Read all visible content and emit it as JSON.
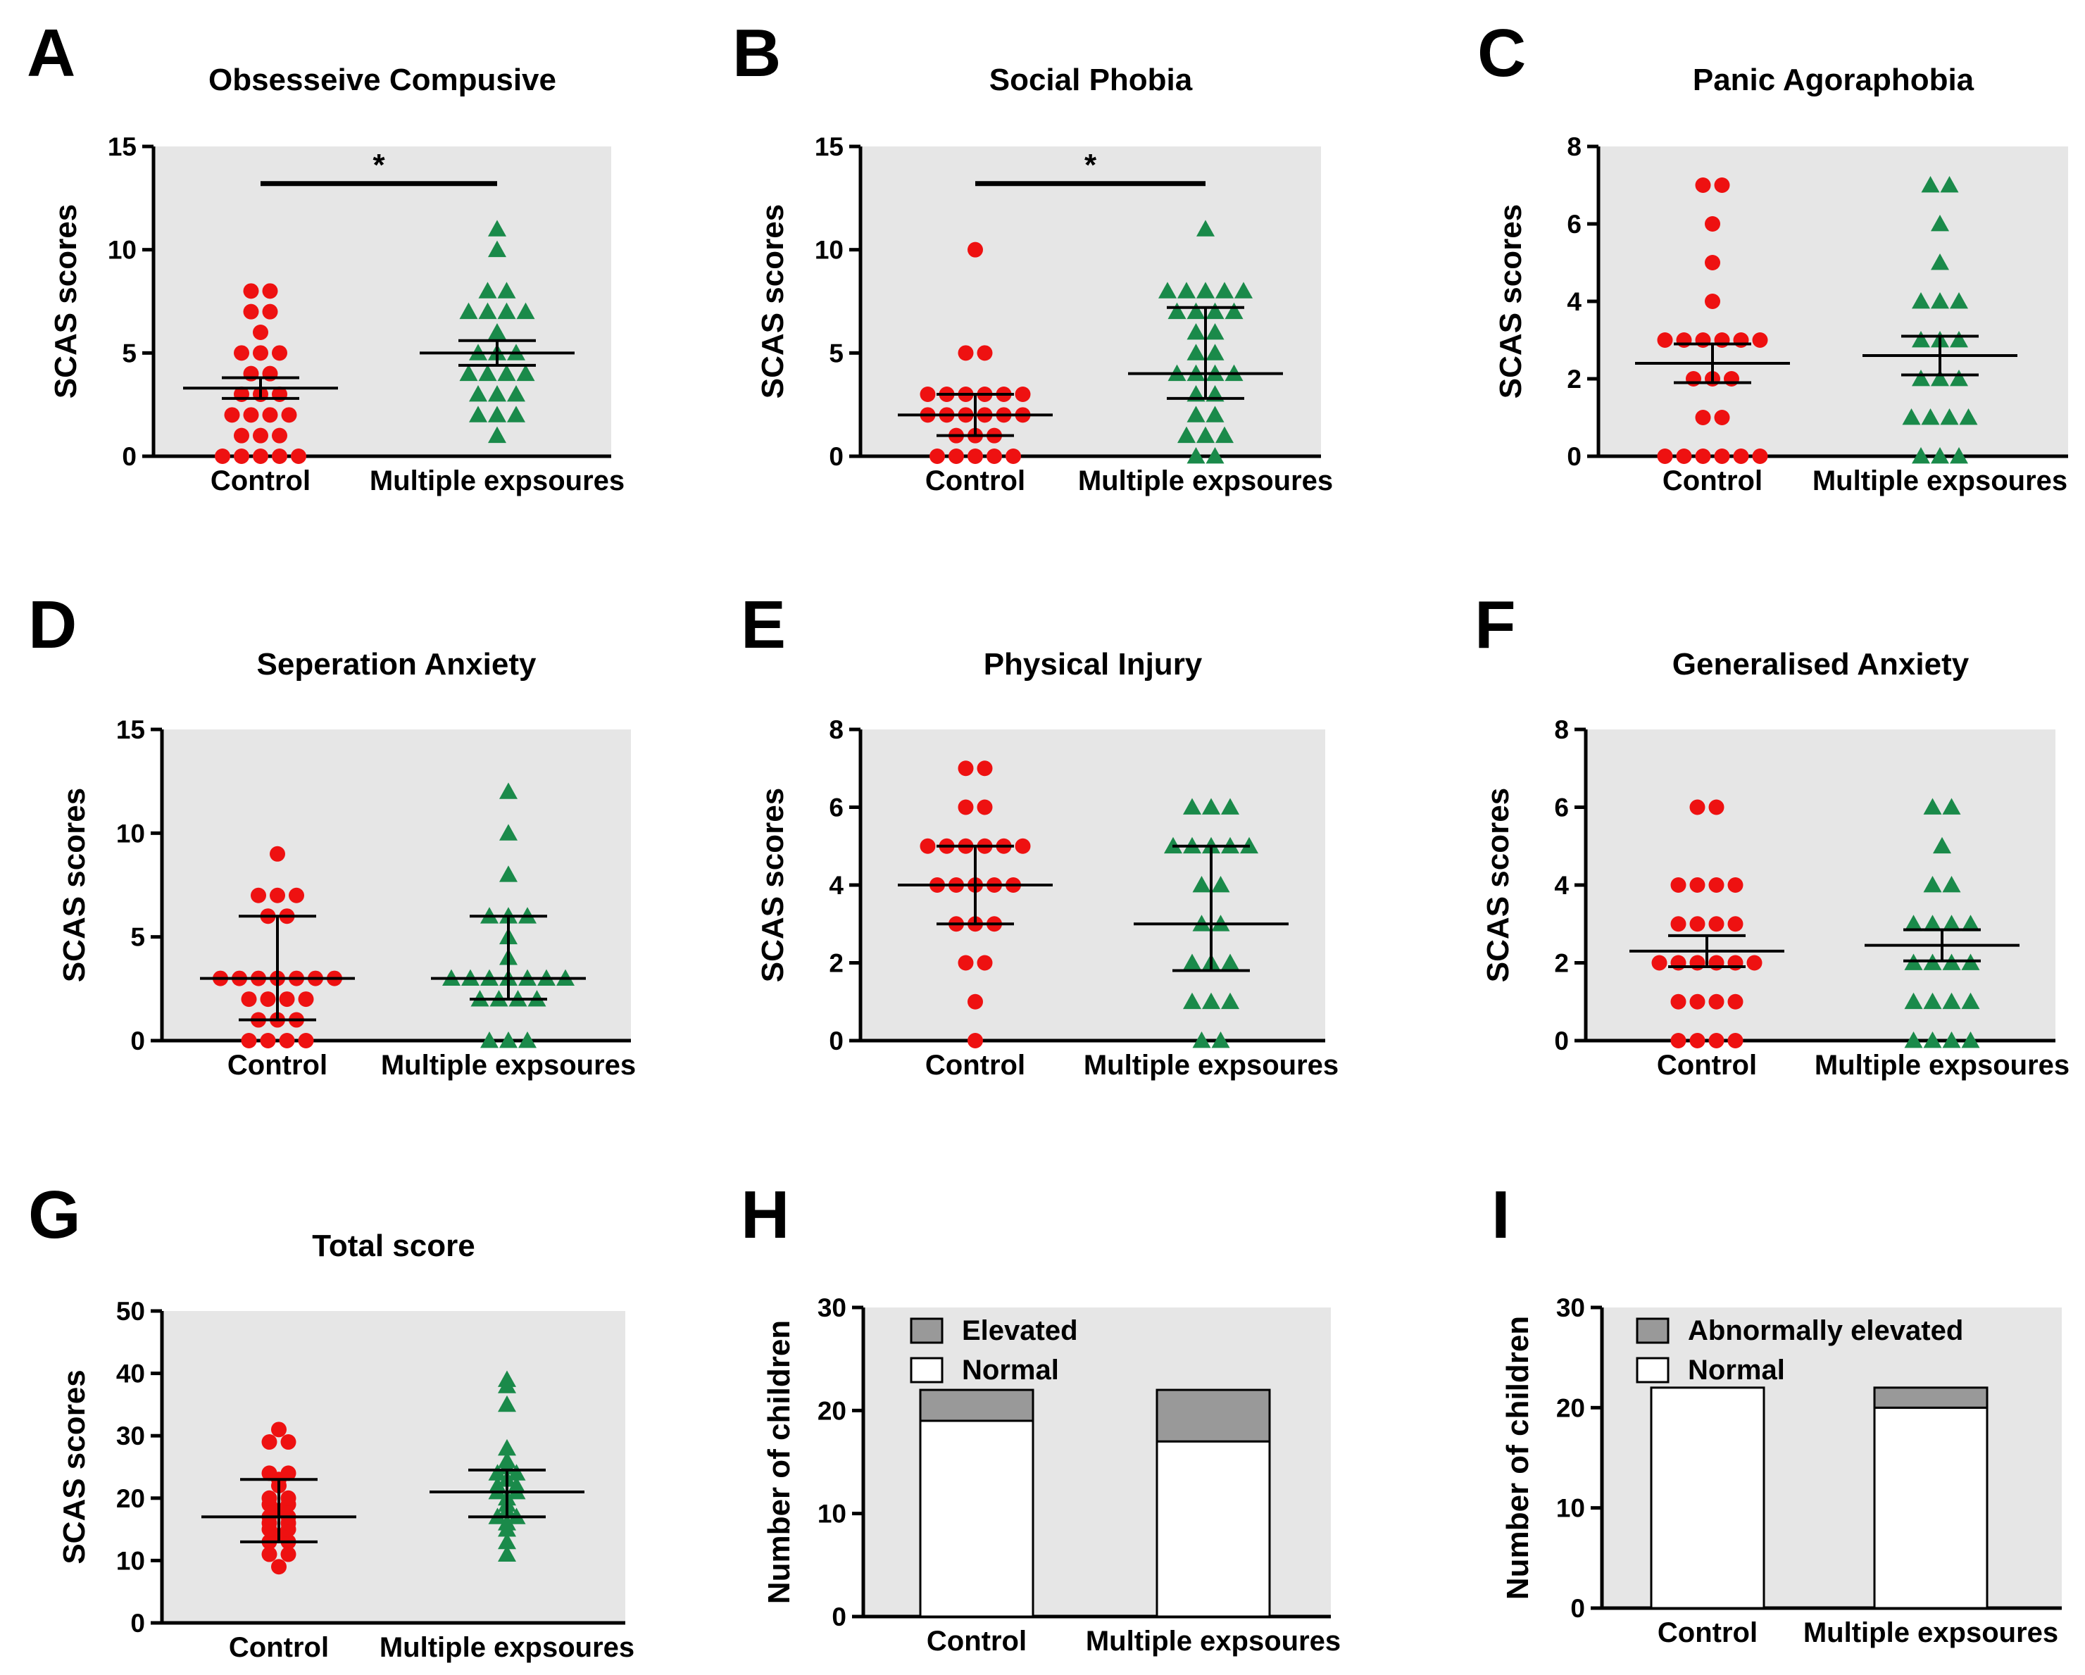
{
  "colors": {
    "control": "#ee1111",
    "exposed": "#1a8a4a",
    "plot_bg": "#e6e6e6",
    "elevated": "#999999",
    "normal": "#ffffff",
    "axis": "#000000"
  },
  "chart_data": [
    {
      "id": "A",
      "type": "scatter",
      "letter": "A",
      "title": "Obsesseive Compusive",
      "ylabel": "SCAS scores",
      "ylim": [
        0,
        15
      ],
      "yticks": [
        0,
        5,
        10,
        15
      ],
      "categories": [
        "Control",
        "Multiple expsoures"
      ],
      "significance": {
        "label": "*",
        "y": 13.2
      },
      "series": [
        {
          "name": "Control",
          "marker": "circle",
          "center": 3.3,
          "err_low": 2.8,
          "err_high": 3.8,
          "values": [
            0,
            0,
            0,
            0,
            0,
            1,
            1,
            1,
            2,
            2,
            2,
            2,
            3,
            3,
            3,
            4,
            4,
            5,
            5,
            5,
            6,
            7,
            7,
            8,
            8
          ]
        },
        {
          "name": "Multiple expsoures",
          "marker": "triangle",
          "center": 5.0,
          "err_low": 4.4,
          "err_high": 5.6,
          "values": [
            1,
            2,
            2,
            2,
            3,
            3,
            3,
            4,
            4,
            4,
            4,
            5,
            5,
            5,
            6,
            7,
            7,
            7,
            7,
            8,
            8,
            10,
            11
          ]
        }
      ]
    },
    {
      "id": "B",
      "type": "scatter",
      "letter": "B",
      "title": "Social Phobia",
      "ylabel": "SCAS scores",
      "ylim": [
        0,
        15
      ],
      "yticks": [
        0,
        5,
        10,
        15
      ],
      "categories": [
        "Control",
        "Multiple expsoures"
      ],
      "significance": {
        "label": "*",
        "y": 13.2
      },
      "series": [
        {
          "name": "Control",
          "marker": "circle",
          "center": 2.0,
          "err_low": 1.0,
          "err_high": 3.0,
          "values": [
            0,
            0,
            0,
            0,
            0,
            1,
            1,
            1,
            2,
            2,
            2,
            2,
            2,
            2,
            3,
            3,
            3,
            3,
            3,
            3,
            5,
            5,
            10
          ]
        },
        {
          "name": "Multiple expsoures",
          "marker": "triangle",
          "center": 4.0,
          "err_low": 2.8,
          "err_high": 7.2,
          "values": [
            0,
            0,
            1,
            1,
            1,
            2,
            2,
            3,
            3,
            4,
            4,
            4,
            4,
            5,
            5,
            6,
            6,
            7,
            7,
            7,
            7,
            8,
            8,
            8,
            8,
            8,
            11
          ]
        }
      ]
    },
    {
      "id": "C",
      "type": "scatter",
      "letter": "C",
      "title": "Panic Agoraphobia",
      "ylabel": "SCAS scores",
      "ylim": [
        0,
        8
      ],
      "yticks": [
        0,
        2,
        4,
        6,
        8
      ],
      "categories": [
        "Control",
        "Multiple expsoures"
      ],
      "series": [
        {
          "name": "Control",
          "marker": "circle",
          "center": 2.4,
          "err_low": 1.9,
          "err_high": 2.9,
          "values": [
            0,
            0,
            0,
            0,
            0,
            0,
            1,
            1,
            2,
            2,
            2,
            3,
            3,
            3,
            3,
            3,
            3,
            4,
            5,
            6,
            7,
            7
          ]
        },
        {
          "name": "Multiple expsoures",
          "marker": "triangle",
          "center": 2.6,
          "err_low": 2.1,
          "err_high": 3.1,
          "values": [
            0,
            0,
            0,
            1,
            1,
            1,
            1,
            2,
            2,
            2,
            3,
            3,
            3,
            4,
            4,
            4,
            5,
            6,
            7,
            7
          ]
        }
      ]
    },
    {
      "id": "D",
      "type": "scatter",
      "letter": "D",
      "title": "Seperation Anxiety",
      "ylabel": "SCAS scores",
      "ylim": [
        0,
        15
      ],
      "yticks": [
        0,
        5,
        10,
        15
      ],
      "categories": [
        "Control",
        "Multiple expsoures"
      ],
      "series": [
        {
          "name": "Control",
          "marker": "circle",
          "center": 3.0,
          "err_low": 1.0,
          "err_high": 6.0,
          "values": [
            0,
            0,
            0,
            0,
            1,
            1,
            1,
            2,
            2,
            2,
            2,
            3,
            3,
            3,
            3,
            3,
            3,
            3,
            6,
            6,
            7,
            7,
            7,
            9
          ]
        },
        {
          "name": "Multiple expsoures",
          "marker": "triangle",
          "center": 3.0,
          "err_low": 2.0,
          "err_high": 6.0,
          "values": [
            0,
            0,
            0,
            2,
            2,
            2,
            2,
            3,
            3,
            3,
            3,
            3,
            3,
            3,
            4,
            5,
            6,
            6,
            6,
            8,
            10,
            12
          ]
        }
      ]
    },
    {
      "id": "E",
      "type": "scatter",
      "letter": "E",
      "title": "Physical Injury",
      "ylabel": "SCAS scores",
      "ylim": [
        0,
        8
      ],
      "yticks": [
        0,
        2,
        4,
        6,
        8
      ],
      "categories": [
        "Control",
        "Multiple expsoures"
      ],
      "series": [
        {
          "name": "Control",
          "marker": "circle",
          "center": 4.0,
          "err_low": 3.0,
          "err_high": 5.0,
          "values": [
            0,
            1,
            2,
            2,
            3,
            3,
            3,
            4,
            4,
            4,
            4,
            4,
            5,
            5,
            5,
            5,
            5,
            5,
            6,
            6,
            7,
            7
          ]
        },
        {
          "name": "Multiple expsoures",
          "marker": "triangle",
          "center": 3.0,
          "err_low": 1.8,
          "err_high": 5.0,
          "values": [
            0,
            0,
            1,
            1,
            1,
            2,
            2,
            2,
            3,
            3,
            4,
            4,
            5,
            5,
            5,
            5,
            5,
            6,
            6,
            6
          ]
        }
      ]
    },
    {
      "id": "F",
      "type": "scatter",
      "letter": "F",
      "title": "Generalised Anxiety",
      "ylabel": "SCAS scores",
      "ylim": [
        0,
        8
      ],
      "yticks": [
        0,
        2,
        4,
        6,
        8
      ],
      "categories": [
        "Control",
        "Multiple expsoures"
      ],
      "series": [
        {
          "name": "Control",
          "marker": "circle",
          "center": 2.3,
          "err_low": 1.9,
          "err_high": 2.7,
          "values": [
            0,
            0,
            0,
            0,
            1,
            1,
            1,
            1,
            2,
            2,
            2,
            2,
            2,
            2,
            3,
            3,
            3,
            3,
            4,
            4,
            4,
            4,
            6,
            6
          ]
        },
        {
          "name": "Multiple expsoures",
          "marker": "triangle",
          "center": 2.45,
          "err_low": 2.05,
          "err_high": 2.85,
          "values": [
            0,
            0,
            0,
            0,
            1,
            1,
            1,
            1,
            2,
            2,
            2,
            2,
            3,
            3,
            3,
            3,
            4,
            4,
            5,
            6,
            6
          ]
        }
      ]
    },
    {
      "id": "G",
      "type": "scatter",
      "letter": "G",
      "title": "Total score",
      "ylabel": "SCAS scores",
      "ylim": [
        0,
        50
      ],
      "yticks": [
        0,
        10,
        20,
        30,
        40,
        50
      ],
      "categories": [
        "Control",
        "Multiple expsoures"
      ],
      "series": [
        {
          "name": "Control",
          "marker": "circle",
          "center": 17,
          "err_low": 13,
          "err_high": 23,
          "values": [
            9,
            11,
            11,
            13,
            13,
            14,
            15,
            15,
            16,
            16,
            17,
            17,
            18,
            19,
            19,
            20,
            20,
            22,
            23,
            24,
            24,
            29,
            29,
            31
          ]
        },
        {
          "name": "Multiple expsoures",
          "marker": "triangle",
          "center": 21,
          "err_low": 17,
          "err_high": 24.5,
          "values": [
            11,
            13,
            15,
            16,
            17,
            17,
            18,
            19,
            20,
            21,
            21,
            22,
            22,
            23,
            24,
            24,
            25,
            26,
            28,
            35,
            38,
            39
          ]
        }
      ]
    },
    {
      "id": "H",
      "type": "bar",
      "letter": "H",
      "title": "",
      "ylabel": "Number of children",
      "ylim": [
        0,
        30
      ],
      "yticks": [
        0,
        10,
        20,
        30
      ],
      "categories": [
        "Control",
        "Multiple expsoures"
      ],
      "legend": [
        "Elevated",
        "Normal"
      ],
      "series": [
        {
          "name": "Normal",
          "values": [
            19,
            17
          ]
        },
        {
          "name": "Elevated",
          "values": [
            3,
            5
          ]
        }
      ]
    },
    {
      "id": "I",
      "type": "bar",
      "letter": "I",
      "title": "",
      "ylabel": "Number of children",
      "ylim": [
        0,
        30
      ],
      "yticks": [
        0,
        10,
        20,
        30
      ],
      "categories": [
        "Control",
        "Multiple expsoures"
      ],
      "legend": [
        "Abnormally elevated",
        "Normal"
      ],
      "series": [
        {
          "name": "Normal",
          "values": [
            22,
            20
          ]
        },
        {
          "name": "Abnormally elevated",
          "values": [
            0,
            2
          ]
        }
      ]
    }
  ]
}
